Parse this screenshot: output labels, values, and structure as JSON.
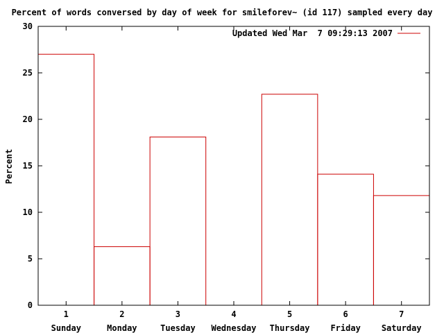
{
  "chart_data": {
    "type": "bar",
    "title": "Percent of words conversed by day of week for smileforev~ (id 117) sampled every day",
    "xlabel": "",
    "ylabel": "Percent",
    "xlim": [
      0.5,
      7.5
    ],
    "ylim": [
      0,
      30
    ],
    "yticks": [
      0,
      5,
      10,
      15,
      20,
      25,
      30
    ],
    "x": [
      1,
      2,
      3,
      4,
      5,
      6,
      7
    ],
    "categories": [
      "Sunday",
      "Monday",
      "Tuesday",
      "Wednesday",
      "Thursday",
      "Friday",
      "Saturday"
    ],
    "series": [
      {
        "name": "Updated Wed Mar  7 09:29:13 2007",
        "color": "#cc0000",
        "values": [
          27.0,
          6.3,
          18.1,
          0.0,
          22.7,
          14.1,
          11.8
        ]
      }
    ],
    "legend_position": "top-right",
    "grid": false
  }
}
